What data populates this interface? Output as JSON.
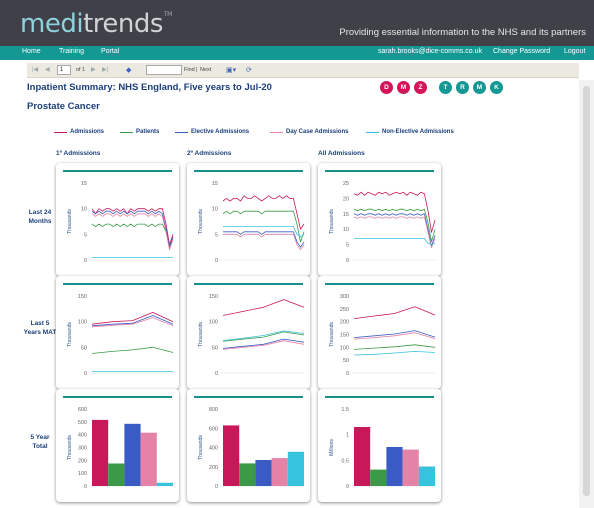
{
  "header": {
    "logo_part1": "medi",
    "logo_part2": "trends",
    "logo_tm": "TM",
    "tagline": "Providing essential information to the NHS and its partners"
  },
  "nav": {
    "home": "Home",
    "training": "Training",
    "portal": "Portal",
    "user": "sarah.brooks@dice-comms.co.uk",
    "change_password": "Change Password",
    "logout": "Logout"
  },
  "toolbar": {
    "page_value": "1",
    "page_of": "of 1",
    "find_label": "Find",
    "separator": "|",
    "next_label": "Next"
  },
  "report": {
    "title": "Inpatient Summary: NHS England, Five years to Jul-20",
    "subtitle": "Prostate Cancer"
  },
  "filters": [
    {
      "letter": "D",
      "color": "#d4145a"
    },
    {
      "letter": "M",
      "color": "#d4145a"
    },
    {
      "letter": "Z",
      "color": "#d4145a"
    },
    {
      "letter": "T",
      "color": "#139893"
    },
    {
      "letter": "R",
      "color": "#139893"
    },
    {
      "letter": "M",
      "color": "#139893"
    },
    {
      "letter": "K",
      "color": "#139893"
    }
  ],
  "legend": [
    {
      "label": "Admissions",
      "color": "#c8185a"
    },
    {
      "label": "Patients",
      "color": "#3a9a48"
    },
    {
      "label": "Elective Admissions",
      "color": "#3a5bc4"
    },
    {
      "label": "Day Case Admissions",
      "color": "#e483a5"
    },
    {
      "label": "Non-Elective Admissions",
      "color": "#36c3dd"
    }
  ],
  "columns": [
    "1º Admissions",
    "2º Admissions",
    "All Admissions"
  ],
  "rows": {
    "r0": "Last 24 Months",
    "r1": "Last 5 Years MAT",
    "r2": "5 Year Total"
  },
  "chart_data": [
    {
      "type": "line",
      "row": "Last 24 Months",
      "column": "1º Admissions",
      "ylabel": "Thousands",
      "ylim": [
        0,
        15
      ],
      "yticks": [
        "0",
        "5",
        "10",
        "15"
      ],
      "series": [
        {
          "name": "Admissions",
          "values": [
            10,
            9,
            10,
            9.5,
            10,
            10,
            9.5,
            10,
            9.5,
            10,
            9,
            10,
            9.5,
            10,
            10,
            10,
            9.5,
            10,
            9.5,
            10,
            10,
            7,
            3,
            5
          ]
        },
        {
          "name": "Patients",
          "values": [
            7,
            6.5,
            7,
            6.5,
            7,
            7,
            6.5,
            7,
            6.5,
            7,
            6.5,
            7,
            6.5,
            7,
            7,
            7,
            6.5,
            7,
            6.5,
            7,
            7,
            5.5,
            2.5,
            4.5
          ]
        },
        {
          "name": "Elective Admissions",
          "values": [
            9.5,
            9,
            9.5,
            9,
            9.5,
            9.5,
            9,
            9.5,
            9,
            9.5,
            9,
            9.5,
            9,
            9.5,
            9.5,
            9.5,
            9,
            9.5,
            9,
            9.5,
            9,
            6,
            2.5,
            4.5
          ]
        },
        {
          "name": "Day Case Admissions",
          "values": [
            9,
            8.5,
            9,
            8.5,
            9,
            9,
            8.5,
            9,
            8.5,
            9,
            8.5,
            9,
            8.5,
            9,
            9,
            9,
            8.5,
            9,
            8.5,
            9,
            8.5,
            5.5,
            2,
            4
          ]
        },
        {
          "name": "Non-Elective Admissions",
          "values": [
            0.5,
            0.5,
            0.5,
            0.5,
            0.5,
            0.5,
            0.5,
            0.5,
            0.5,
            0.5,
            0.5,
            0.5,
            0.5,
            0.5,
            0.5,
            0.5,
            0.5,
            0.5,
            0.5,
            0.5,
            0.5,
            0.5,
            0.5,
            0.5
          ]
        }
      ]
    },
    {
      "type": "line",
      "row": "Last 24 Months",
      "column": "2º Admissions",
      "ylabel": "Thousands",
      "ylim": [
        0,
        15
      ],
      "yticks": [
        "0",
        "5",
        "10",
        "15"
      ],
      "series": [
        {
          "name": "Admissions",
          "values": [
            11.5,
            12,
            11.5,
            12,
            12,
            11.5,
            12.5,
            12,
            12,
            12.5,
            12,
            11.5,
            12,
            12.5,
            12,
            12,
            12.5,
            12,
            12.5,
            12,
            12,
            9,
            6,
            7
          ]
        },
        {
          "name": "Patients",
          "values": [
            9,
            9.5,
            9,
            9.5,
            9.5,
            9,
            9.5,
            9.5,
            9.5,
            9.5,
            9.5,
            9,
            9.5,
            9.5,
            9.5,
            9.5,
            9.5,
            9.5,
            9.5,
            9.5,
            9.5,
            7,
            3.5,
            5.5
          ]
        },
        {
          "name": "Elective Admissions",
          "values": [
            5.5,
            5.5,
            5.5,
            5.5,
            5.5,
            5,
            5.5,
            5.5,
            5.5,
            5.5,
            5.5,
            5,
            5.5,
            5.5,
            5.5,
            5.5,
            5.5,
            5.5,
            5.5,
            5.5,
            5.5,
            3.5,
            2.5,
            3.5
          ]
        },
        {
          "name": "Day Case Admissions",
          "values": [
            5,
            5,
            5,
            5,
            5,
            4.5,
            5,
            5,
            5,
            5,
            5,
            4.5,
            5,
            5,
            5,
            5,
            5,
            5,
            5,
            5,
            5,
            3,
            2,
            3
          ]
        },
        {
          "name": "Non-Elective Admissions",
          "values": [
            6.5,
            6.5,
            6.5,
            6.5,
            6.5,
            6.5,
            6.5,
            6.5,
            6.5,
            6.5,
            6.5,
            6.5,
            6.5,
            6.5,
            6.5,
            6.5,
            6.5,
            6.5,
            6.5,
            6.5,
            6.5,
            5,
            4.5,
            5
          ]
        }
      ]
    },
    {
      "type": "line",
      "row": "Last 24 Months",
      "column": "All Admissions",
      "ylabel": "Thousands",
      "ylim": [
        0,
        25
      ],
      "yticks": [
        "0",
        "5",
        "10",
        "15",
        "20",
        "25"
      ],
      "series": [
        {
          "name": "Admissions",
          "values": [
            21.5,
            21,
            22,
            21,
            22,
            21.5,
            21,
            22,
            21.5,
            22,
            21,
            21.5,
            22,
            21.5,
            22,
            21,
            22,
            21.5,
            21,
            22,
            21.5,
            16,
            9,
            13
          ]
        },
        {
          "name": "Patients",
          "values": [
            16.5,
            16,
            16.5,
            16,
            16.5,
            16.5,
            16,
            16.5,
            16,
            16.5,
            16,
            16.5,
            16,
            16.5,
            16.5,
            16,
            16.5,
            16,
            16.5,
            16,
            16.5,
            12,
            6,
            10
          ]
        },
        {
          "name": "Elective Admissions",
          "values": [
            15,
            14.5,
            15,
            14.5,
            15,
            15,
            14.5,
            15,
            14.5,
            15,
            14.5,
            15,
            14.5,
            15,
            15,
            14.5,
            15,
            14.5,
            15,
            14.5,
            15,
            10,
            4.5,
            8
          ]
        },
        {
          "name": "Day Case Admissions",
          "values": [
            14,
            13.5,
            14,
            13.5,
            14,
            14,
            13.5,
            14,
            13.5,
            14,
            13.5,
            14,
            13.5,
            14,
            14,
            13.5,
            14,
            13.5,
            14,
            13.5,
            14,
            9,
            4,
            7
          ]
        },
        {
          "name": "Non-Elective Admissions",
          "values": [
            7,
            7,
            7,
            7,
            7,
            7,
            7,
            7,
            7,
            7,
            7,
            7,
            7,
            7,
            7,
            7,
            7,
            7,
            7,
            7,
            7,
            5.5,
            5,
            5.5
          ]
        }
      ]
    },
    {
      "type": "line",
      "row": "Last 5 Years MAT",
      "column": "1º Admissions",
      "ylabel": "Thousands",
      "ylim": [
        0,
        150
      ],
      "yticks": [
        "0",
        "50",
        "100",
        "150"
      ],
      "series": [
        {
          "name": "Admissions",
          "values": [
            95,
            100,
            102,
            118,
            100
          ]
        },
        {
          "name": "Patients",
          "values": [
            38,
            42,
            45,
            50,
            40
          ]
        },
        {
          "name": "Elective Admissions",
          "values": [
            92,
            95,
            97,
            112,
            95
          ]
        },
        {
          "name": "Day Case Admissions",
          "values": [
            90,
            93,
            95,
            108,
            92
          ]
        },
        {
          "name": "Non-Elective Admissions",
          "values": [
            3,
            3,
            3,
            3,
            3
          ]
        }
      ]
    },
    {
      "type": "line",
      "row": "Last 5 Years MAT",
      "column": "2º Admissions",
      "ylabel": "Thousands",
      "ylim": [
        0,
        150
      ],
      "yticks": [
        "0",
        "50",
        "100",
        "150"
      ],
      "series": [
        {
          "name": "Admissions",
          "values": [
            112,
            120,
            128,
            143,
            128
          ]
        },
        {
          "name": "Patients",
          "values": [
            62,
            66,
            70,
            80,
            74
          ]
        },
        {
          "name": "Elective Admissions",
          "values": [
            48,
            52,
            56,
            66,
            60
          ]
        },
        {
          "name": "Day Case Admissions",
          "values": [
            46,
            50,
            54,
            63,
            56
          ]
        },
        {
          "name": "Non-Elective Admissions",
          "values": [
            63,
            68,
            73,
            82,
            77
          ]
        }
      ]
    },
    {
      "type": "line",
      "row": "Last 5 Years MAT",
      "column": "All Admissions",
      "ylabel": "Thousands",
      "ylim": [
        0,
        300
      ],
      "yticks": [
        "0",
        "50",
        "100",
        "150",
        "200",
        "250",
        "300"
      ],
      "series": [
        {
          "name": "Admissions",
          "values": [
            212,
            222,
            232,
            258,
            226
          ]
        },
        {
          "name": "Patients",
          "values": [
            92,
            97,
            102,
            110,
            100
          ]
        },
        {
          "name": "Elective Admissions",
          "values": [
            138,
            145,
            152,
            165,
            140
          ]
        },
        {
          "name": "Day Case Admissions",
          "values": [
            132,
            138,
            145,
            157,
            134
          ]
        },
        {
          "name": "Non-Elective Admissions",
          "values": [
            70,
            73,
            78,
            84,
            80
          ]
        }
      ]
    },
    {
      "type": "bar",
      "row": "5 Year Total",
      "column": "1º Admissions",
      "ylabel": "Thousands",
      "ylim": [
        0,
        600
      ],
      "yticks": [
        "0",
        "100",
        "200",
        "300",
        "400",
        "500",
        "600"
      ],
      "categories": [
        "Admissions",
        "Patients",
        "Elective Admissions",
        "Day Case Admissions",
        "Non-Elective Admissions"
      ],
      "values": [
        515,
        175,
        485,
        415,
        25
      ]
    },
    {
      "type": "bar",
      "row": "5 Year Total",
      "column": "2º Admissions",
      "ylabel": "Thousands",
      "ylim": [
        0,
        800
      ],
      "yticks": [
        "0",
        "200",
        "400",
        "600",
        "800"
      ],
      "categories": [
        "Admissions",
        "Patients",
        "Elective Admissions",
        "Day Case Admissions",
        "Non-Elective Admissions"
      ],
      "values": [
        630,
        235,
        270,
        290,
        355
      ]
    },
    {
      "type": "bar",
      "row": "5 Year Total",
      "column": "All Admissions",
      "ylabel": "Millions",
      "ylim": [
        0,
        1.5
      ],
      "yticks": [
        "0",
        "0.5",
        "1",
        "1.5"
      ],
      "categories": [
        "Admissions",
        "Patients",
        "Elective Admissions",
        "Day Case Admissions",
        "Non-Elective Admissions"
      ],
      "values": [
        1.15,
        0.32,
        0.76,
        0.71,
        0.38
      ]
    }
  ]
}
